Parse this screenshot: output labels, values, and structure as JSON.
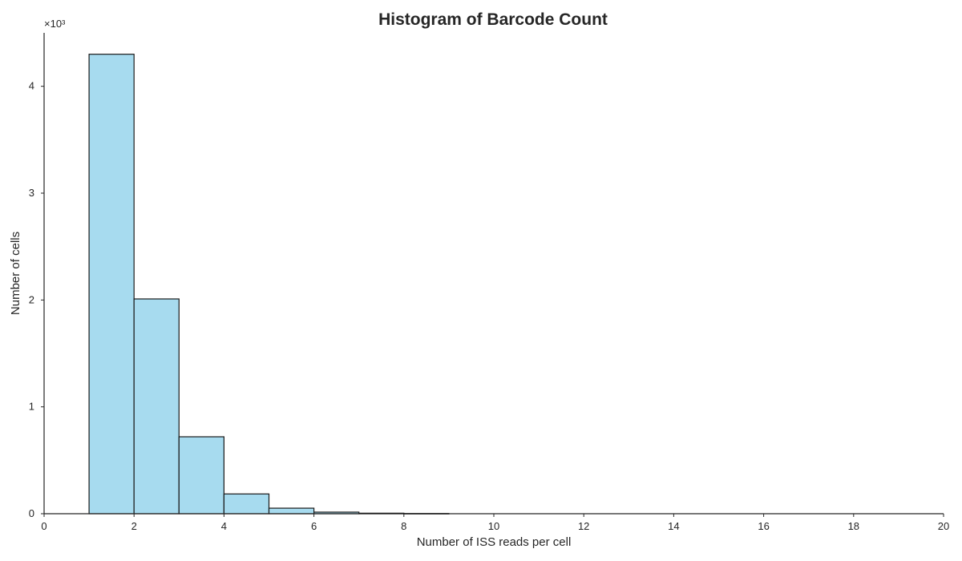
{
  "chart_data": {
    "type": "bar",
    "title": "Histogram of Barcode Count",
    "xlabel": "Number of ISS reads per cell",
    "ylabel": "Number of cells",
    "y_offset_text": "×10³",
    "xlim": [
      0,
      20
    ],
    "ylim": [
      0,
      4.5
    ],
    "x_ticks": [
      0,
      2,
      4,
      6,
      8,
      10,
      12,
      14,
      16,
      18,
      20
    ],
    "y_ticks": [
      0,
      1,
      2,
      3,
      4
    ],
    "bins": [
      {
        "x0": 1,
        "x1": 2,
        "value": 4.3
      },
      {
        "x0": 2,
        "x1": 3,
        "value": 2.01
      },
      {
        "x0": 3,
        "x1": 4,
        "value": 0.72
      },
      {
        "x0": 4,
        "x1": 5,
        "value": 0.185
      },
      {
        "x0": 5,
        "x1": 6,
        "value": 0.052
      },
      {
        "x0": 6,
        "x1": 7,
        "value": 0.015
      },
      {
        "x0": 7,
        "x1": 8,
        "value": 0.005
      },
      {
        "x0": 8,
        "x1": 9,
        "value": 0.002
      }
    ],
    "grid": false,
    "bar_color": "#a7dbef",
    "edge_color": "#1a1a1a"
  }
}
